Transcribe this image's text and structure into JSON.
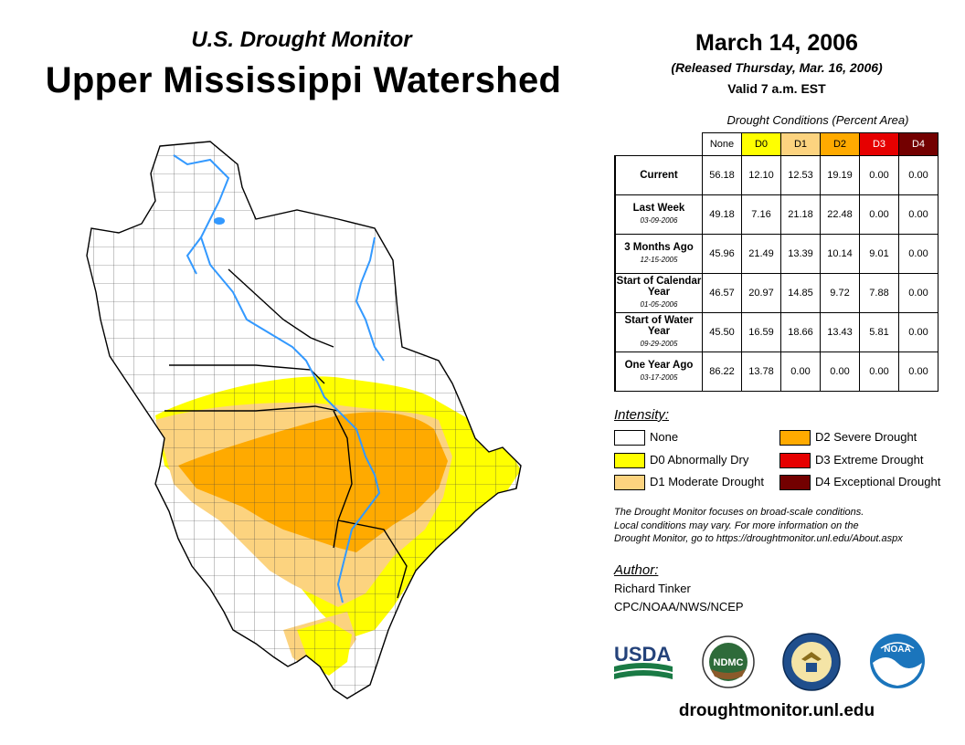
{
  "header": {
    "subtitle": "U.S. Drought Monitor",
    "title": "Upper Mississippi Watershed",
    "date": "March 14, 2006",
    "released": "(Released Thursday, Mar. 16, 2006)",
    "valid": "Valid 7 a.m. EST"
  },
  "table": {
    "caption": "Drought Conditions (Percent Area)",
    "columns": [
      "None",
      "D0",
      "D1",
      "D2",
      "D3",
      "D4"
    ],
    "column_colors": [
      "#ffffff",
      "#ffff00",
      "#fcd37f",
      "#ffaa00",
      "#e60000",
      "#730000"
    ],
    "rows": [
      {
        "label": "Current",
        "date": "",
        "values": [
          "56.18",
          "12.10",
          "12.53",
          "19.19",
          "0.00",
          "0.00"
        ]
      },
      {
        "label": "Last Week",
        "date": "03-09-2006",
        "values": [
          "49.18",
          "7.16",
          "21.18",
          "22.48",
          "0.00",
          "0.00"
        ]
      },
      {
        "label": "3 Months Ago",
        "date": "12-15-2005",
        "values": [
          "45.96",
          "21.49",
          "13.39",
          "10.14",
          "9.01",
          "0.00"
        ]
      },
      {
        "label": "Start of Calendar Year",
        "date": "01-05-2006",
        "values": [
          "46.57",
          "20.97",
          "14.85",
          "9.72",
          "7.88",
          "0.00"
        ]
      },
      {
        "label": "Start of Water Year",
        "date": "09-29-2005",
        "values": [
          "45.50",
          "16.59",
          "18.66",
          "13.43",
          "5.81",
          "0.00"
        ]
      },
      {
        "label": "One Year Ago",
        "date": "03-17-2005",
        "values": [
          "86.22",
          "13.78",
          "0.00",
          "0.00",
          "0.00",
          "0.00"
        ]
      }
    ]
  },
  "legend": {
    "heading": "Intensity:",
    "items": [
      {
        "label": "None",
        "color": "#ffffff"
      },
      {
        "label": "D0 Abnormally Dry",
        "color": "#ffff00"
      },
      {
        "label": "D1 Moderate Drought",
        "color": "#fcd37f"
      },
      {
        "label": "D2 Severe Drought",
        "color": "#ffaa00"
      },
      {
        "label": "D3 Extreme Drought",
        "color": "#e60000"
      },
      {
        "label": "D4 Exceptional Drought",
        "color": "#730000"
      }
    ]
  },
  "note": {
    "line1": "The Drought Monitor focuses on broad-scale conditions.",
    "line2": "Local conditions may vary. For more information on the",
    "line3": "Drought Monitor, go to https://droughtmonitor.unl.edu/About.aspx"
  },
  "author": {
    "heading": "Author:",
    "name": "Richard Tinker",
    "org": "CPC/NOAA/NWS/NCEP"
  },
  "logos": {
    "usda": "USDA",
    "ndmc": "NDMC",
    "noaa": "NOAA"
  },
  "website": "droughtmonitor.unl.edu",
  "map_colors": {
    "none": "#ffffff",
    "d0": "#ffff00",
    "d1": "#fcd37f",
    "d2": "#ffaa00",
    "water": "#3399ff"
  }
}
